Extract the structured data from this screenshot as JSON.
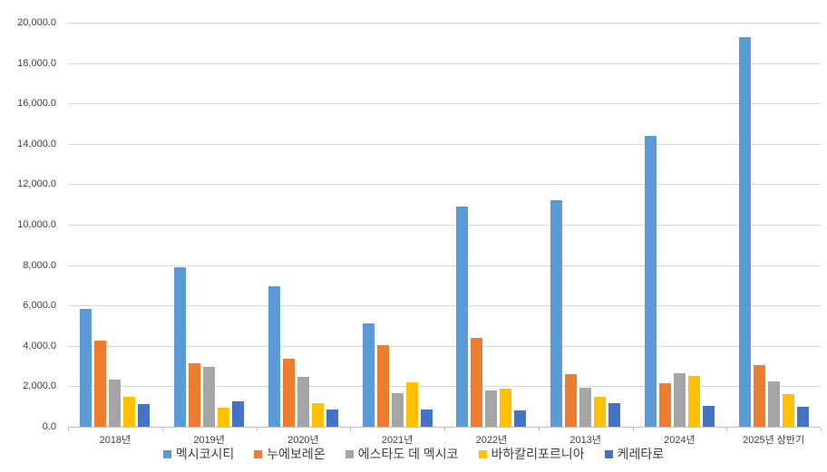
{
  "chart_data": {
    "type": "bar",
    "title": "",
    "xlabel": "",
    "ylabel": "",
    "categories": [
      "2018년",
      "2019년",
      "2020년",
      "2021년",
      "2022년",
      "2013년",
      "2024년",
      "2025년 상반기"
    ],
    "series": [
      {
        "name": "멕시코시티",
        "color": "#5B9BD5",
        "values": [
          5850,
          7900,
          6950,
          5100,
          10900,
          11200,
          14400,
          19300
        ]
      },
      {
        "name": "누에보레온",
        "color": "#ED7D31",
        "values": [
          4250,
          3150,
          3350,
          4050,
          4400,
          2600,
          2150,
          3050
        ]
      },
      {
        "name": "에스타도 데 멕시코",
        "color": "#A5A5A5",
        "values": [
          2350,
          2950,
          2450,
          1650,
          1800,
          1950,
          2650,
          2250
        ]
      },
      {
        "name": "바하칼리포르니아",
        "color": "#FFC000",
        "values": [
          1500,
          950,
          1150,
          2200,
          1900,
          1500,
          2500,
          1600
        ]
      },
      {
        "name": "케레타로",
        "color": "#4472C4",
        "values": [
          1100,
          1250,
          850,
          850,
          800,
          1150,
          1050,
          1000
        ]
      }
    ],
    "ylim": [
      0,
      20000
    ],
    "ytick_step": 2000,
    "ytick_labels": [
      "0.0",
      "2,000.0",
      "4,000.0",
      "6,000.0",
      "8,000.0",
      "10,000.0",
      "12,000.0",
      "14,000.0",
      "16,000.0",
      "18,000.0",
      "20,000.0"
    ],
    "grid": true,
    "legend_position": "bottom",
    "colors": {
      "background": "#FFFFFF",
      "gridline": "#D9D9D9",
      "axis_line": "#BFBFBF",
      "tick_label": "#404040",
      "legend_label": "#404040"
    }
  }
}
